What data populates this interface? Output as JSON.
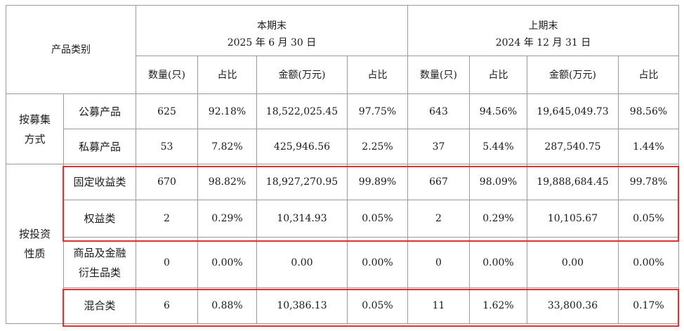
{
  "header": {
    "category": "产品类别",
    "current": {
      "title": "本期末",
      "date": "2025 年 6 月 30 日"
    },
    "previous": {
      "title": "上期末",
      "date": "2024 年 12 月 31 日"
    },
    "cols": [
      "数量(只)",
      "占比",
      "金额(万元)",
      "占比"
    ]
  },
  "groups": [
    {
      "label": "按募集方式",
      "rows": [
        {
          "name": "公募产品",
          "values": [
            "625",
            "92.18%",
            "18,522,025.45",
            "97.75%",
            "643",
            "94.56%",
            "19,645,049.73",
            "98.56%"
          ]
        },
        {
          "name": "私募产品",
          "values": [
            "53",
            "7.82%",
            "425,946.56",
            "2.25%",
            "37",
            "5.44%",
            "287,540.75",
            "1.44%"
          ]
        }
      ]
    },
    {
      "label": "按投资性质",
      "rows": [
        {
          "name": "固定收益类",
          "values": [
            "670",
            "98.82%",
            "18,927,270.95",
            "99.89%",
            "667",
            "98.09%",
            "19,888,684.45",
            "99.78%"
          ]
        },
        {
          "name": "权益类",
          "values": [
            "2",
            "0.29%",
            "10,314.93",
            "0.05%",
            "2",
            "0.29%",
            "10,105.67",
            "0.05%"
          ]
        },
        {
          "name": "商品及金融衍生品类",
          "values": [
            "0",
            "0.00%",
            "0.00",
            "0.00%",
            "0",
            "0.00%",
            "0.00",
            "0.00%"
          ]
        },
        {
          "name": "混合类",
          "values": [
            "6",
            "0.88%",
            "10,386.13",
            "0.05%",
            "11",
            "1.62%",
            "33,800.36",
            "0.17%"
          ]
        }
      ]
    }
  ],
  "highlight_color": "#e0302f"
}
